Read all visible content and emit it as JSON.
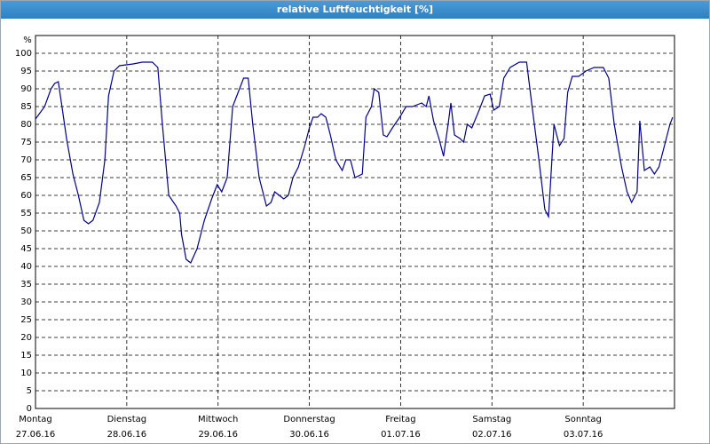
{
  "chart_data": {
    "type": "line",
    "title": "relative Luftfeuchtigkeit [%]",
    "y_unit": "%",
    "color": "#00008b",
    "grid": true,
    "xlim": [
      0,
      7
    ],
    "ylim": [
      0,
      105
    ],
    "yticks": [
      0,
      5,
      10,
      15,
      20,
      25,
      30,
      35,
      40,
      45,
      50,
      55,
      60,
      65,
      70,
      75,
      80,
      85,
      90,
      95,
      100
    ],
    "xticks": [
      {
        "value": 0,
        "label": "Montag"
      },
      {
        "value": 1,
        "label": "Dienstag"
      },
      {
        "value": 2,
        "label": "Mittwoch"
      },
      {
        "value": 3,
        "label": "Donnerstag"
      },
      {
        "value": 4,
        "label": "Freitag"
      },
      {
        "value": 5,
        "label": "Samstag"
      },
      {
        "value": 6,
        "label": "Sonntag"
      }
    ],
    "xtick_dates": [
      "27.06.16",
      "28.06.16",
      "29.06.16",
      "30.06.16",
      "01.07.16",
      "02.07.16",
      "03.07.16"
    ],
    "x": [
      0,
      0.1,
      0.17,
      0.21,
      0.25,
      0.29,
      0.34,
      0.41,
      0.47,
      0.53,
      0.58,
      0.63,
      0.7,
      0.76,
      0.8,
      0.86,
      0.92,
      1.07,
      1.17,
      1.28,
      1.34,
      1.39,
      1.46,
      1.54,
      1.58,
      1.6,
      1.65,
      1.7,
      1.77,
      1.85,
      1.93,
      1.99,
      2.04,
      2.1,
      2.16,
      2.22,
      2.28,
      2.33,
      2.38,
      2.45,
      2.53,
      2.58,
      2.62,
      2.67,
      2.72,
      2.77,
      2.82,
      2.88,
      2.95,
      3.0,
      3.04,
      3.09,
      3.13,
      3.18,
      3.23,
      3.29,
      3.36,
      3.4,
      3.45,
      3.5,
      3.58,
      3.62,
      3.68,
      3.71,
      3.76,
      3.81,
      3.85,
      3.91,
      3.99,
      4.06,
      4.13,
      4.23,
      4.28,
      4.31,
      4.36,
      4.42,
      4.47,
      4.52,
      4.55,
      4.59,
      4.65,
      4.69,
      4.73,
      4.78,
      4.86,
      4.92,
      4.98,
      5.02,
      5.08,
      5.13,
      5.2,
      5.3,
      5.38,
      5.44,
      5.51,
      5.58,
      5.62,
      5.68,
      5.74,
      5.79,
      5.83,
      5.88,
      5.95,
      6.03,
      6.12,
      6.22,
      6.28,
      6.34,
      6.42,
      6.48,
      6.53,
      6.59,
      6.62,
      6.67,
      6.73,
      6.78,
      6.83,
      6.88,
      6.95,
      6.98
    ],
    "values": [
      81.5,
      85,
      90,
      91.5,
      92,
      85,
      76,
      66,
      60,
      53,
      52,
      53,
      58,
      70,
      88,
      95,
      96.5,
      97,
      97.5,
      97.5,
      96,
      80,
      60,
      57,
      55,
      49,
      42,
      41,
      45,
      53,
      59,
      63,
      61,
      65,
      85,
      89,
      93,
      93,
      80,
      65,
      57,
      58,
      61,
      60,
      59,
      60,
      65,
      68,
      74,
      79,
      82,
      82,
      83,
      82,
      77,
      70,
      67,
      70,
      70,
      65,
      66,
      82,
      85,
      90,
      89,
      77,
      76.5,
      79,
      82,
      85,
      85,
      86,
      85,
      88,
      81,
      76,
      71,
      80,
      86,
      77,
      76,
      75,
      80,
      79,
      84,
      88,
      88.5,
      84,
      85,
      93,
      96,
      97.5,
      97.5,
      85,
      71,
      56,
      54,
      80,
      74,
      76,
      89,
      93.5,
      93.5,
      95,
      96,
      96,
      93,
      80,
      68,
      61,
      58,
      61,
      81,
      67,
      68,
      66,
      68,
      73,
      80,
      82
    ]
  }
}
